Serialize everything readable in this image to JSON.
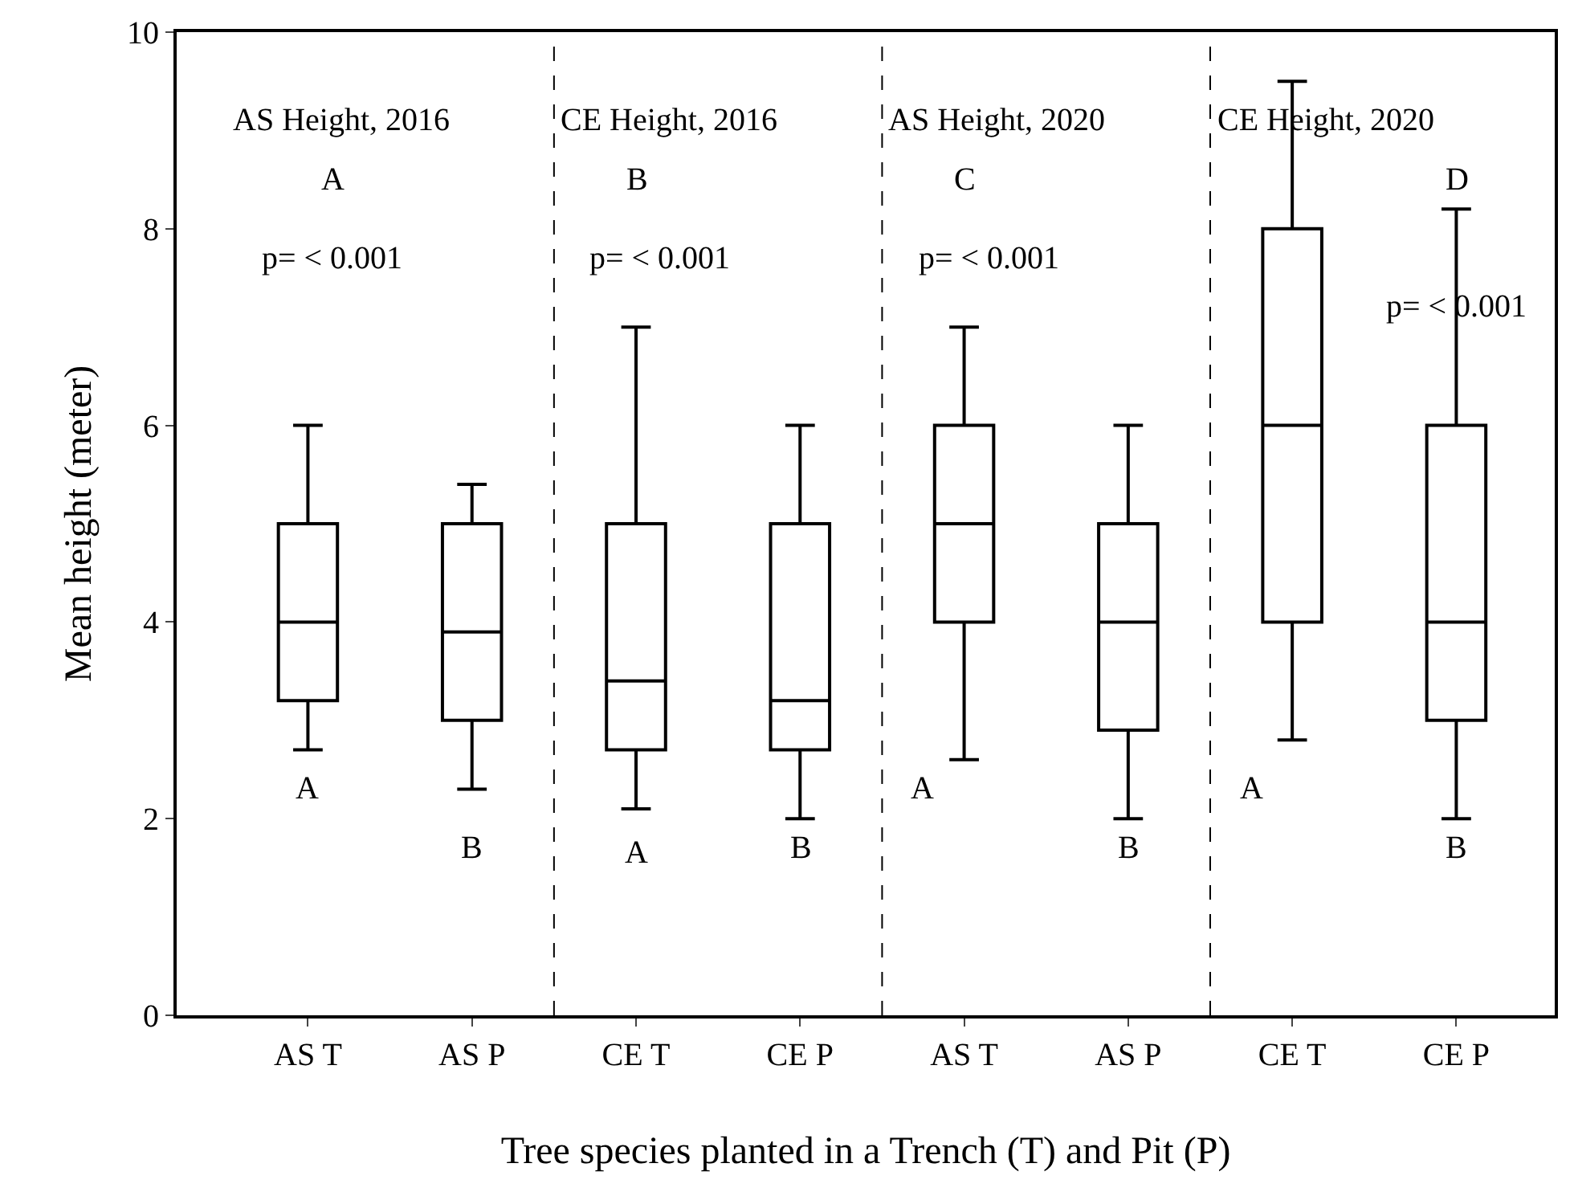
{
  "chart_data": {
    "type": "box",
    "xlabel": "Tree species planted in a Trench (T) and Pit (P)",
    "ylabel": "Mean height (meter)",
    "categories": [
      "AS T",
      "AS P",
      "CE T",
      "CE P",
      "AS T",
      "AS P",
      "CE T",
      "CE P"
    ],
    "boxes": [
      {
        "low": 2.7,
        "q1": 3.2,
        "median": 4,
        "q3": 5,
        "high": 6
      },
      {
        "low": 2.3,
        "q1": 3,
        "median": 3.9,
        "q3": 5,
        "high": 5.4
      },
      {
        "low": 2.1,
        "q1": 2.7,
        "median": 3.4,
        "q3": 5,
        "high": 7
      },
      {
        "low": 2,
        "q1": 2.7,
        "median": 3.2,
        "q3": 5,
        "high": 6
      },
      {
        "low": 2.6,
        "q1": 4,
        "median": 5,
        "q3": 6,
        "high": 7
      },
      {
        "low": 2,
        "q1": 2.9,
        "median": 4,
        "q3": 5,
        "high": 6
      },
      {
        "low": 2.8,
        "q1": 4,
        "median": 6,
        "q3": 8,
        "high": 9.5
      },
      {
        "low": 2,
        "q1": 3,
        "median": 4,
        "q3": 6,
        "high": 8.2
      }
    ],
    "color": "#000000",
    "ylim": [
      0,
      10
    ],
    "yticks": [
      0,
      2,
      4,
      6,
      8,
      10
    ],
    "legend": false,
    "annotations": [
      "AS Height, 2016",
      "A",
      "p= < 0.001",
      "A",
      "B",
      "CE Height, 2016",
      "B",
      "p= < 0.001",
      "A",
      "B",
      "AS Height, 2020",
      "C",
      "p= < 0.001",
      "A",
      "B",
      "CE Height, 2020",
      "A",
      "D",
      "p= < 0.001",
      "B"
    ]
  }
}
